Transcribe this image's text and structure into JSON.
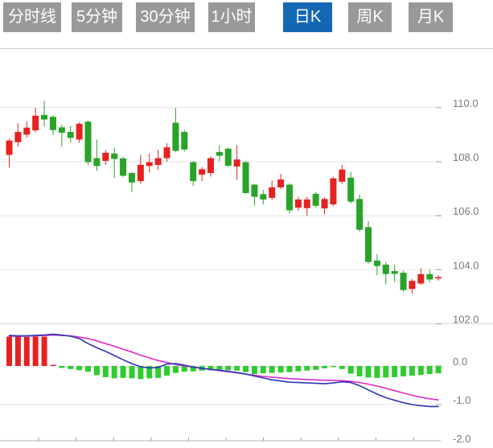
{
  "toolbar": {
    "tabs": [
      {
        "label": "分时线",
        "active": false
      },
      {
        "label": "5分钟",
        "active": false
      },
      {
        "label": "30分钟",
        "active": false
      },
      {
        "label": "1小时",
        "active": false
      },
      {
        "label": "日K",
        "active": true
      },
      {
        "label": "周K",
        "active": false
      },
      {
        "label": "月K",
        "active": false
      }
    ]
  },
  "colors": {
    "tab_inactive": "#999999",
    "tab_active": "#1467b3",
    "tab_text": "#ffffff",
    "candle_up": "#e52222",
    "candle_down": "#29a329",
    "hist_up": "#e52222",
    "hist_down": "#2fcc2f",
    "dif_line": "#2b35b5",
    "dea_line": "#dc2bc8",
    "grid": "#e4e4e4",
    "separator": "#cccccc",
    "axis": "#b0b0b0",
    "tick": "#999999",
    "label": "#787878"
  },
  "chart_data": {
    "type": "candlestick",
    "title": "Daily K-line with MACD sub-chart",
    "legend_position": "none",
    "grid": true,
    "panels": {
      "price": {
        "y_ticks": [
          110.0,
          108.0,
          106.0,
          104.0,
          102.0
        ],
        "ylim": [
          101.8,
          110.45
        ],
        "candles_ohlc": [
          [
            108.25,
            108.85,
            107.78,
            108.78
          ],
          [
            108.72,
            109.42,
            108.55,
            109.1
          ],
          [
            109.0,
            109.5,
            108.88,
            109.26
          ],
          [
            109.16,
            110.0,
            109.08,
            109.7
          ],
          [
            109.73,
            110.25,
            109.3,
            109.56
          ],
          [
            109.66,
            109.72,
            108.98,
            109.17
          ],
          [
            109.27,
            109.36,
            108.56,
            109.07
          ],
          [
            109.1,
            109.32,
            108.7,
            108.88
          ],
          [
            108.82,
            109.46,
            108.7,
            109.4
          ],
          [
            109.48,
            109.52,
            107.88,
            107.98
          ],
          [
            108.13,
            108.82,
            107.66,
            107.84
          ],
          [
            108.03,
            108.42,
            107.88,
            108.33
          ],
          [
            108.3,
            108.52,
            107.4,
            108.1
          ],
          [
            108.12,
            108.2,
            107.44,
            107.48
          ],
          [
            107.58,
            107.62,
            106.88,
            107.23
          ],
          [
            107.28,
            108.25,
            107.18,
            107.88
          ],
          [
            107.84,
            108.3,
            107.6,
            107.98
          ],
          [
            107.88,
            108.44,
            107.7,
            108.13
          ],
          [
            108.13,
            108.68,
            108.0,
            108.53
          ],
          [
            109.44,
            110.0,
            108.35,
            108.4
          ],
          [
            109.1,
            109.16,
            108.38,
            108.45
          ],
          [
            107.98,
            108.02,
            107.1,
            107.28
          ],
          [
            107.52,
            107.8,
            107.28,
            107.72
          ],
          [
            107.58,
            108.2,
            107.45,
            108.13
          ],
          [
            108.36,
            108.6,
            108.02,
            108.22
          ],
          [
            108.48,
            108.52,
            107.8,
            107.85
          ],
          [
            107.82,
            108.62,
            107.32,
            108.08
          ],
          [
            107.98,
            108.02,
            106.8,
            106.84
          ],
          [
            107.15,
            107.18,
            106.38,
            106.7
          ],
          [
            106.8,
            106.95,
            106.42,
            106.6
          ],
          [
            106.66,
            107.3,
            106.58,
            107.05
          ],
          [
            107.05,
            107.55,
            106.98,
            107.34
          ],
          [
            107.15,
            107.2,
            106.08,
            106.2
          ],
          [
            106.3,
            106.7,
            106.18,
            106.6
          ],
          [
            106.28,
            106.7,
            106.0,
            106.6
          ],
          [
            106.81,
            106.88,
            106.3,
            106.37
          ],
          [
            106.27,
            106.68,
            106.05,
            106.62
          ],
          [
            106.42,
            107.45,
            106.35,
            107.38
          ],
          [
            107.26,
            107.88,
            107.18,
            107.71
          ],
          [
            107.41,
            107.62,
            106.45,
            106.52
          ],
          [
            106.62,
            106.78,
            105.4,
            105.48
          ],
          [
            105.58,
            105.8,
            104.22,
            104.29
          ],
          [
            104.34,
            104.58,
            103.8,
            104.14
          ],
          [
            104.19,
            104.3,
            103.45,
            103.84
          ],
          [
            103.95,
            104.2,
            103.55,
            103.85
          ],
          [
            103.89,
            103.96,
            103.18,
            103.25
          ],
          [
            103.29,
            103.66,
            103.12,
            103.59
          ],
          [
            103.49,
            104.05,
            103.44,
            103.84
          ],
          [
            103.84,
            104.0,
            103.52,
            103.64
          ],
          [
            103.68,
            103.8,
            103.6,
            103.73
          ]
        ]
      },
      "macd": {
        "y_ticks": [
          0.0,
          -1.0,
          -2.0
        ],
        "ylim": [
          -2.1,
          1.0
        ],
        "histogram": [
          0.76,
          0.76,
          0.75,
          0.76,
          0.76,
          0.02,
          -0.05,
          -0.08,
          -0.11,
          -0.15,
          -0.24,
          -0.29,
          -0.32,
          -0.31,
          -0.32,
          -0.34,
          -0.32,
          -0.31,
          -0.25,
          -0.18,
          -0.15,
          -0.14,
          -0.12,
          -0.11,
          -0.1,
          -0.11,
          -0.12,
          -0.16,
          -0.21,
          -0.19,
          -0.18,
          -0.17,
          -0.16,
          -0.14,
          -0.12,
          -0.1,
          -0.06,
          -0.03,
          -0.08,
          -0.2,
          -0.27,
          -0.3,
          -0.31,
          -0.3,
          -0.29,
          -0.27,
          -0.25,
          -0.23,
          -0.21,
          -0.19
        ],
        "dif": [
          0.79,
          0.78,
          0.78,
          0.79,
          0.8,
          0.82,
          0.8,
          0.77,
          0.71,
          0.58,
          0.47,
          0.38,
          0.27,
          0.16,
          0.06,
          -0.02,
          -0.05,
          -0.04,
          0.05,
          0.06,
          0.02,
          -0.03,
          -0.06,
          -0.09,
          -0.11,
          -0.14,
          -0.17,
          -0.21,
          -0.26,
          -0.31,
          -0.36,
          -0.39,
          -0.42,
          -0.43,
          -0.44,
          -0.45,
          -0.46,
          -0.44,
          -0.41,
          -0.43,
          -0.51,
          -0.62,
          -0.73,
          -0.82,
          -0.89,
          -0.95,
          -1.0,
          -1.03,
          -1.05,
          -1.05
        ],
        "dea": [
          0.77,
          0.77,
          0.77,
          0.78,
          0.79,
          0.8,
          0.79,
          0.78,
          0.75,
          0.71,
          0.65,
          0.58,
          0.51,
          0.43,
          0.36,
          0.28,
          0.21,
          0.14,
          0.09,
          0.04,
          0.0,
          -0.03,
          -0.06,
          -0.09,
          -0.12,
          -0.15,
          -0.18,
          -0.21,
          -0.24,
          -0.27,
          -0.29,
          -0.31,
          -0.33,
          -0.34,
          -0.35,
          -0.36,
          -0.37,
          -0.37,
          -0.38,
          -0.4,
          -0.43,
          -0.47,
          -0.52,
          -0.58,
          -0.64,
          -0.7,
          -0.76,
          -0.81,
          -0.85,
          -0.88
        ]
      }
    }
  }
}
